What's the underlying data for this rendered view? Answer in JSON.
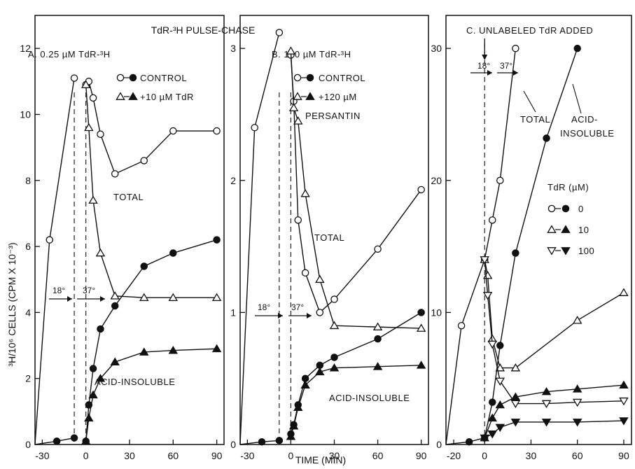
{
  "figure_title": "TdR-³H PULSE-CHASE",
  "xlabel": "TIME (MIN)",
  "ylabel": "³H/10⁶ CELLS (CPM X 10⁻³)",
  "colors": {
    "ink": "#111111",
    "background": "#ffffff"
  },
  "chart_data": [
    {
      "type": "line",
      "title": "A. 0.25 µM TdR-³H",
      "xlim": [
        -35,
        95
      ],
      "ylim": [
        0,
        13
      ],
      "x_ticks": [
        -30,
        0,
        30,
        60,
        90
      ],
      "x_tick_labels": [
        "-30",
        "0",
        "30",
        "60",
        "90"
      ],
      "y_ticks": [
        0,
        2,
        4,
        6,
        8,
        10,
        12
      ],
      "y_tick_labels": [
        "0",
        "2",
        "4",
        "6",
        "8",
        "10",
        "12"
      ],
      "legend": [
        {
          "label": "CONTROL",
          "markers": [
            "open-circle",
            "filled-circle"
          ]
        },
        {
          "label": "+10 µM TdR",
          "markers": [
            "open-triangle",
            "filled-triangle"
          ]
        }
      ],
      "annotations": [
        "TOTAL",
        "ACID-INSOLUBLE",
        "18°",
        "37°"
      ],
      "series": [
        {
          "marker": "open-circle",
          "x": [
            -35,
            -25,
            -8
          ],
          "y": [
            0,
            6.2,
            11.1
          ]
        },
        {
          "marker": "filled-circle",
          "x": [
            -35,
            -20,
            -8
          ],
          "y": [
            0,
            0.1,
            0.2
          ]
        },
        {
          "marker": "open-circle",
          "x": [
            0,
            2,
            5,
            10,
            20,
            40,
            60,
            90
          ],
          "y": [
            10.9,
            11.0,
            10.5,
            9.4,
            8.2,
            8.6,
            9.5,
            9.5
          ]
        },
        {
          "marker": "open-triangle",
          "x": [
            0,
            2,
            5,
            10,
            20,
            40,
            60,
            90
          ],
          "y": [
            10.9,
            9.6,
            7.4,
            5.8,
            4.5,
            4.45,
            4.45,
            4.45
          ]
        },
        {
          "marker": "filled-circle",
          "x": [
            0,
            2,
            5,
            10,
            20,
            40,
            60,
            90
          ],
          "y": [
            0.1,
            1.2,
            2.3,
            3.5,
            4.2,
            5.4,
            5.8,
            6.2
          ]
        },
        {
          "marker": "filled-triangle",
          "x": [
            0,
            2,
            5,
            10,
            20,
            40,
            60,
            90
          ],
          "y": [
            0.1,
            0.8,
            1.5,
            2.0,
            2.5,
            2.8,
            2.85,
            2.9
          ]
        }
      ]
    },
    {
      "type": "line",
      "title": "B. 100 µM TdR-³H",
      "xlim": [
        -35,
        95
      ],
      "ylim": [
        0,
        3.25
      ],
      "x_ticks": [
        -30,
        0,
        30,
        60,
        90
      ],
      "x_tick_labels": [
        "-30",
        "0",
        "30",
        "60",
        "90"
      ],
      "y_ticks": [
        0,
        1,
        2,
        3
      ],
      "y_tick_labels": [
        "0",
        "1",
        "2",
        "3"
      ],
      "legend": [
        {
          "label": "CONTROL",
          "markers": [
            "open-circle",
            "filled-circle"
          ]
        },
        {
          "label": "+120 µM PERSANTIN",
          "markers": [
            "open-triangle",
            "filled-triangle"
          ]
        }
      ],
      "annotations": [
        "TOTAL",
        "ACID-INSOLUBLE",
        "18°",
        "37°"
      ],
      "series": [
        {
          "marker": "open-circle",
          "x": [
            -35,
            -25,
            -8
          ],
          "y": [
            0,
            2.4,
            3.12
          ]
        },
        {
          "marker": "filled-circle",
          "x": [
            -35,
            -20,
            -8
          ],
          "y": [
            0,
            0.02,
            0.03
          ]
        },
        {
          "marker": "open-circle",
          "x": [
            0,
            2,
            5,
            10,
            20,
            30,
            60,
            90
          ],
          "y": [
            2.95,
            2.6,
            1.7,
            1.3,
            1.0,
            1.1,
            1.48,
            1.93
          ]
        },
        {
          "marker": "open-triangle",
          "x": [
            0,
            2,
            5,
            10,
            20,
            30,
            60,
            90
          ],
          "y": [
            2.98,
            2.55,
            2.45,
            1.9,
            1.25,
            0.9,
            0.89,
            0.88
          ]
        },
        {
          "marker": "filled-circle",
          "x": [
            0,
            2,
            5,
            10,
            20,
            30,
            60,
            90
          ],
          "y": [
            0.08,
            0.15,
            0.3,
            0.5,
            0.6,
            0.66,
            0.8,
            1.0
          ]
        },
        {
          "marker": "filled-triangle",
          "x": [
            0,
            2,
            5,
            10,
            20,
            30,
            60,
            90
          ],
          "y": [
            0.06,
            0.14,
            0.28,
            0.45,
            0.55,
            0.58,
            0.59,
            0.6
          ]
        }
      ]
    },
    {
      "type": "line",
      "title": "C. UNLABELED TdR ADDED",
      "xlim": [
        -25,
        95
      ],
      "ylim": [
        0,
        32.5
      ],
      "x_ticks": [
        -20,
        0,
        30,
        60,
        90
      ],
      "x_tick_labels": [
        "-20",
        "0",
        "30",
        "60",
        "90"
      ],
      "y_ticks": [
        0,
        10,
        20,
        30
      ],
      "y_tick_labels": [
        "0",
        "10",
        "20",
        "30"
      ],
      "legend_title": "TdR (µM)",
      "legend": [
        {
          "label": "0",
          "markers": [
            "open-circle",
            "filled-circle"
          ]
        },
        {
          "label": "10",
          "markers": [
            "open-triangle",
            "filled-triangle"
          ]
        },
        {
          "label": "100",
          "markers": [
            "open-down-triangle",
            "filled-down-triangle"
          ]
        }
      ],
      "annotations": [
        "TOTAL",
        "ACID-INSOLUBLE",
        "18°",
        "37°"
      ],
      "series": [
        {
          "marker": "open-circle",
          "x": [
            -25,
            -15,
            0,
            5,
            10,
            20
          ],
          "y": [
            0,
            9,
            14,
            17,
            20,
            30
          ]
        },
        {
          "marker": "filled-circle",
          "x": [
            -25,
            -10,
            0,
            5,
            10,
            20,
            40,
            60
          ],
          "y": [
            0,
            0.2,
            0.5,
            3.2,
            7.5,
            14.5,
            23.2,
            30
          ]
        },
        {
          "marker": "open-triangle",
          "x": [
            0,
            2,
            5,
            10,
            20,
            60,
            90
          ],
          "y": [
            14,
            12.8,
            8,
            5.8,
            5.8,
            9.4,
            11.5
          ]
        },
        {
          "marker": "filled-triangle",
          "x": [
            0,
            5,
            10,
            20,
            40,
            60,
            90
          ],
          "y": [
            0.5,
            2,
            3,
            3.6,
            4,
            4.2,
            4.5
          ]
        },
        {
          "marker": "open-down-triangle",
          "x": [
            0,
            2,
            5,
            10,
            20,
            40,
            60,
            90
          ],
          "y": [
            14,
            11.3,
            7.6,
            4.8,
            3.1,
            3.1,
            3.2,
            3.3
          ]
        },
        {
          "marker": "filled-down-triangle",
          "x": [
            0,
            5,
            10,
            20,
            40,
            60,
            90
          ],
          "y": [
            0.5,
            0.8,
            1.3,
            1.7,
            1.7,
            1.7,
            1.8
          ]
        }
      ]
    }
  ]
}
